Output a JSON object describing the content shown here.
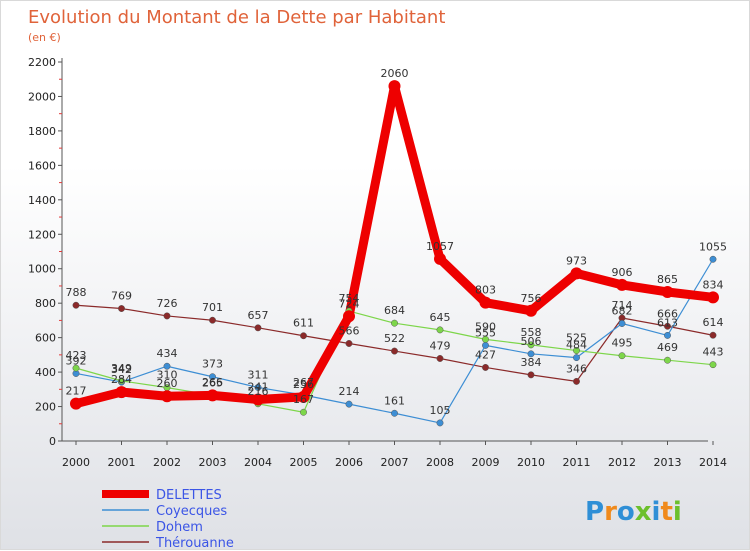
{
  "chart_data": {
    "type": "line",
    "title": "Evolution du Montant de la Dette par Habitant",
    "subtitle": "(en €)",
    "x": [
      2000,
      2001,
      2002,
      2003,
      2004,
      2005,
      2006,
      2007,
      2008,
      2009,
      2010,
      2011,
      2012,
      2013,
      2014
    ],
    "ylim": [
      0,
      2200
    ],
    "yticks": [
      0,
      200,
      400,
      600,
      800,
      1000,
      1200,
      1400,
      1600,
      1800,
      2000,
      2200
    ],
    "grid": false,
    "legend": "bottom-left",
    "series": [
      {
        "name": "DELETTES",
        "color": "#ee0000",
        "values": [
          217,
          284,
          260,
          265,
          241,
          256,
          724,
          2060,
          1057,
          803,
          756,
          973,
          906,
          865,
          834
        ]
      },
      {
        "name": "Coyecques",
        "color": "#3d8ed4",
        "values": [
          392,
          342,
          434,
          373,
          311,
          267,
          214,
          161,
          105,
          555,
          506,
          484,
          682,
          613,
          1055
        ]
      },
      {
        "name": "Dohem",
        "color": "#7dd64a",
        "values": [
          423,
          349,
          310,
          266,
          216,
          167,
          754,
          684,
          645,
          590,
          558,
          525,
          495,
          469,
          443
        ]
      },
      {
        "name": "Thérouanne",
        "color": "#8b2a2a",
        "values": [
          788,
          769,
          726,
          701,
          657,
          611,
          566,
          522,
          479,
          427,
          384,
          346,
          714,
          666,
          614
        ]
      }
    ]
  },
  "logo": {
    "text": "Proxiti"
  }
}
